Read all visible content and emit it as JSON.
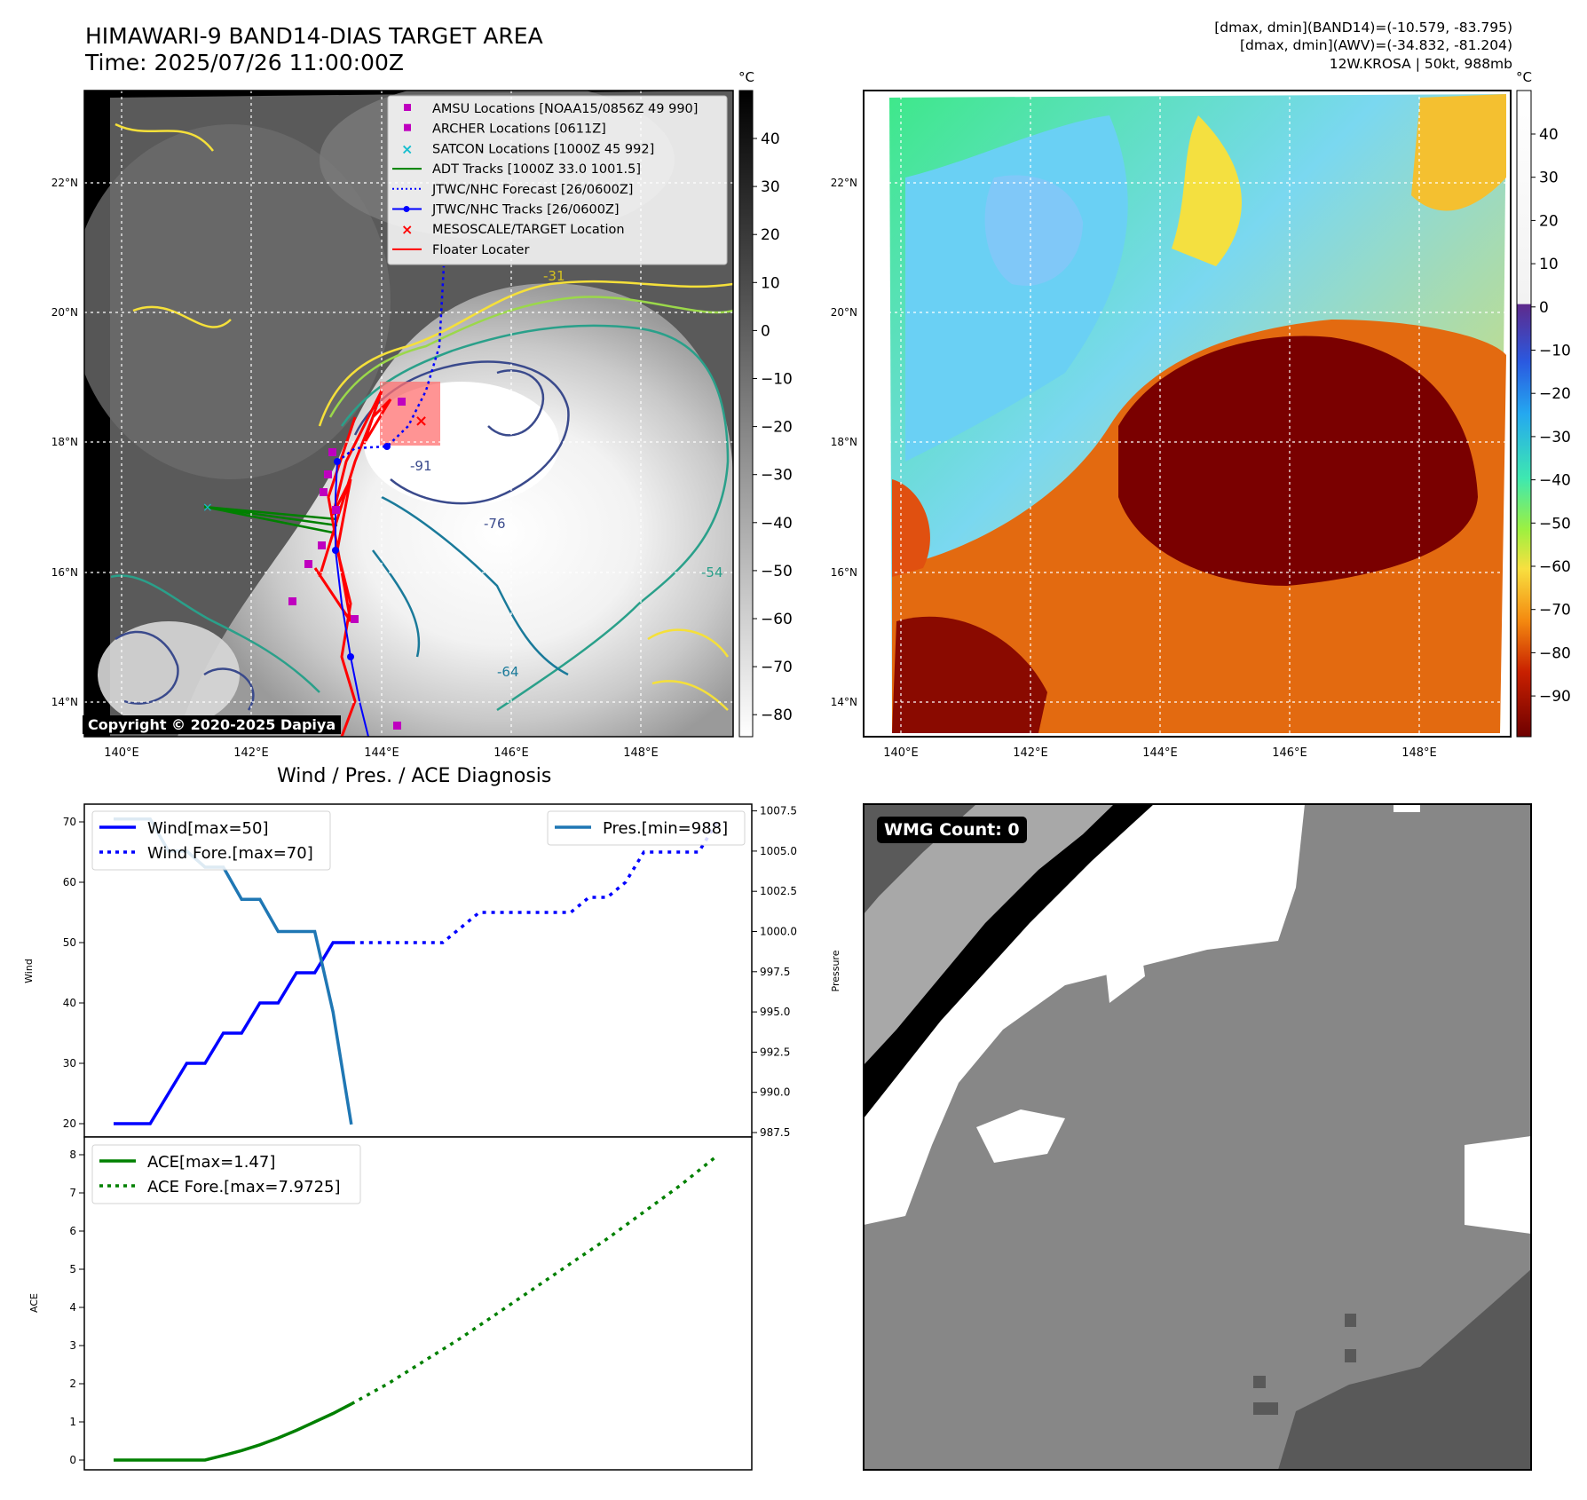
{
  "header": {
    "title_line1": "HIMAWARI-9 BAND14-DIAS TARGET AREA",
    "title_line2": "Time: 2025/07/26 11:00:00Z",
    "info_line1": "[dmax, dmin](BAND14)=(-10.579, -83.795)",
    "info_line2": "[dmax, dmin](AWV)=(-34.832, -81.204)",
    "info_line3": "12W.KROSA | 50kt, 988mb"
  },
  "map": {
    "lat_labels": [
      "22°N",
      "20°N",
      "18°N",
      "16°N",
      "14°N"
    ],
    "lon_labels": [
      "140°E",
      "142°E",
      "144°E",
      "146°E",
      "148°E"
    ],
    "copyright": "Copyright © 2020-2025 Dapiya",
    "contour_labels": [
      "-31",
      "-54",
      "-64",
      "-76",
      "-91"
    ],
    "legend": [
      {
        "label": "AMSU Locations [NOAA15/0856Z 49 990]",
        "color": "#bf00bf",
        "marker": "square"
      },
      {
        "label": "ARCHER Locations [0611Z]",
        "color": "#bf00bf",
        "marker": "square"
      },
      {
        "label": "SATCON Locations [1000Z 45 992]",
        "color": "#17becf",
        "marker": "x"
      },
      {
        "label": "ADT Tracks [1000Z 33.0 1001.5]",
        "color": "#008000",
        "marker": "line"
      },
      {
        "label": "JTWC/NHC Forecast [26/0600Z]",
        "color": "#0000ff",
        "marker": "dotted"
      },
      {
        "label": "JTWC/NHC Tracks [26/0600Z]",
        "color": "#0000ff",
        "marker": "line-dot"
      },
      {
        "label": "MESOSCALE/TARGET Location",
        "color": "#ff0000",
        "marker": "x"
      },
      {
        "label": "Floater Locater",
        "color": "#ff0000",
        "marker": "line"
      }
    ],
    "colorbar_gray": {
      "unit": "°C",
      "ticks": [
        "40",
        "30",
        "20",
        "10",
        "0",
        "−10",
        "−20",
        "−30",
        "−40",
        "−50",
        "−60",
        "−70",
        "−80"
      ]
    },
    "colorbar_awv": {
      "unit": "°C",
      "ticks": [
        "40",
        "30",
        "20",
        "10",
        "0",
        "−10",
        "−20",
        "−30",
        "−40",
        "−50",
        "−60",
        "−70",
        "−80",
        "−90"
      ]
    }
  },
  "diagnosis_title": "Wind / Pres. / ACE Diagnosis",
  "wmg_label": "WMG Count: 0",
  "chart_data": [
    {
      "type": "line",
      "ylabel": "Wind",
      "ylim": [
        20,
        70
      ],
      "yticks": [
        "70",
        "60",
        "50",
        "40",
        "30",
        "20"
      ],
      "series": [
        {
          "name": "Wind[max=50]",
          "color": "#0000ff",
          "style": "solid",
          "x": [
            0,
            1,
            2,
            3,
            4,
            5,
            6,
            7,
            8,
            9,
            10,
            11,
            12,
            13
          ],
          "values": [
            20,
            20,
            20,
            25,
            30,
            30,
            35,
            35,
            40,
            40,
            45,
            45,
            50,
            50
          ]
        },
        {
          "name": "Wind Fore.[max=70]",
          "color": "#0000ff",
          "style": "dotted",
          "x": [
            13,
            15,
            18,
            19,
            20,
            22,
            25,
            26,
            27,
            28,
            29,
            30,
            31,
            32,
            33
          ],
          "values": [
            50,
            50,
            50,
            52.5,
            55,
            55,
            55,
            57.5,
            57.5,
            60,
            65,
            65,
            65,
            65,
            70
          ]
        }
      ]
    },
    {
      "type": "line",
      "ylabel": "Pressure",
      "ylim": [
        987.5,
        1007.5
      ],
      "yticks": [
        "1007.5",
        "1005.0",
        "1002.5",
        "1000.0",
        "997.5",
        "995.0",
        "992.5",
        "990.0",
        "987.5"
      ],
      "series": [
        {
          "name": "Pres.[min=988]",
          "color": "#1f77b4",
          "style": "solid",
          "x": [
            0,
            1,
            2,
            3,
            4,
            5,
            6,
            7,
            8,
            9,
            10,
            11,
            12,
            13
          ],
          "values": [
            1007,
            1007,
            1007,
            1005,
            1005,
            1004,
            1004,
            1002,
            1002,
            1000,
            1000,
            1000,
            995,
            988
          ]
        }
      ]
    },
    {
      "type": "line",
      "ylabel": "ACE",
      "ylim": [
        0,
        8
      ],
      "yticks": [
        "8",
        "7",
        "6",
        "5",
        "4",
        "3",
        "2",
        "1",
        "0"
      ],
      "series": [
        {
          "name": "ACE[max=1.47]",
          "color": "#008000",
          "style": "solid",
          "x": [
            0,
            1,
            2,
            3,
            4,
            5,
            6,
            7,
            8,
            9,
            10,
            11,
            12,
            13
          ],
          "values": [
            0,
            0,
            0,
            0,
            0,
            0,
            0.12,
            0.25,
            0.4,
            0.58,
            0.78,
            1.0,
            1.22,
            1.47
          ]
        },
        {
          "name": "ACE Fore.[max=7.9725]",
          "color": "#008000",
          "style": "dotted",
          "x": [
            13,
            15,
            17,
            19,
            21,
            23,
            25,
            27,
            29,
            31,
            33
          ],
          "values": [
            1.47,
            2.0,
            2.6,
            3.2,
            3.85,
            4.5,
            5.15,
            5.8,
            6.5,
            7.2,
            7.97
          ]
        }
      ]
    }
  ]
}
